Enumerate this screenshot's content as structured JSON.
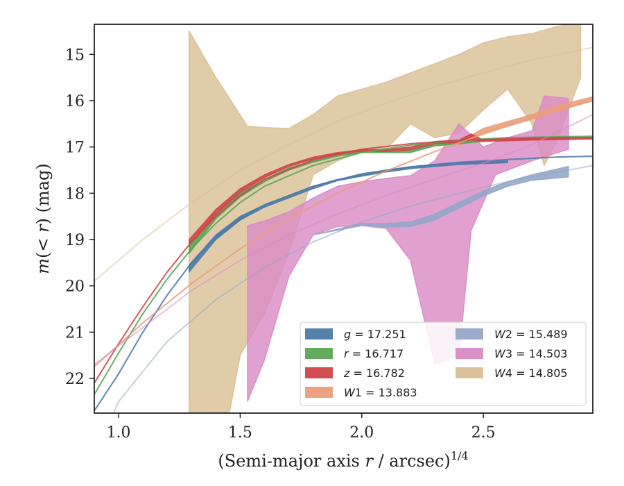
{
  "chart_data": {
    "type": "area",
    "title": "",
    "xlabel_main": "(Semi-major axis ",
    "xlabel_var": "r",
    "xlabel_tail": " / arcsec)",
    "xlabel_sup": "1/4",
    "ylabel_m": "m",
    "ylabel_mid": "(< ",
    "ylabel_r": "r",
    "ylabel_end": ") (mag)",
    "xlim": [
      0.9,
      2.95
    ],
    "ylim": [
      22.75,
      14.35
    ],
    "y_inverted": true,
    "grid": false,
    "legend_position": "lower-right",
    "x_ticks": [
      1.0,
      1.5,
      2.0,
      2.5
    ],
    "x_tick_labels": [
      "1.0",
      "1.5",
      "2.0",
      "2.5"
    ],
    "y_ticks": [
      15,
      16,
      17,
      18,
      19,
      20,
      21,
      22
    ],
    "y_tick_labels": [
      "15",
      "16",
      "17",
      "18",
      "19",
      "20",
      "21",
      "22"
    ],
    "series": [
      {
        "name": "g",
        "legend_var": "g",
        "legend_value": "= 17.251",
        "color": "#4c7aa8",
        "band_upper": [
          [
            1.29,
            19.55
          ],
          [
            1.4,
            18.9
          ],
          [
            1.5,
            18.5
          ],
          [
            1.6,
            18.25
          ],
          [
            1.7,
            18.05
          ],
          [
            1.8,
            17.85
          ],
          [
            1.9,
            17.7
          ],
          [
            2.0,
            17.6
          ],
          [
            2.1,
            17.5
          ],
          [
            2.2,
            17.43
          ],
          [
            2.3,
            17.38
          ],
          [
            2.4,
            17.34
          ],
          [
            2.5,
            17.32
          ],
          [
            2.6,
            17.3
          ]
        ],
        "band_lower": [
          [
            1.29,
            19.7
          ],
          [
            1.4,
            19.0
          ],
          [
            1.5,
            18.58
          ],
          [
            1.6,
            18.3
          ],
          [
            1.7,
            18.1
          ],
          [
            1.8,
            17.9
          ],
          [
            1.9,
            17.73
          ],
          [
            2.0,
            17.63
          ],
          [
            2.1,
            17.54
          ],
          [
            2.2,
            17.47
          ],
          [
            2.3,
            17.42
          ],
          [
            2.4,
            17.38
          ],
          [
            2.5,
            17.36
          ],
          [
            2.6,
            17.34
          ]
        ],
        "fit": [
          [
            0.9,
            22.7
          ],
          [
            1.0,
            21.9
          ],
          [
            1.1,
            21.0
          ],
          [
            1.2,
            20.2
          ],
          [
            1.3,
            19.5
          ],
          [
            1.4,
            18.95
          ],
          [
            1.5,
            18.55
          ],
          [
            1.6,
            18.25
          ],
          [
            1.8,
            17.85
          ],
          [
            2.0,
            17.58
          ],
          [
            2.2,
            17.43
          ],
          [
            2.4,
            17.33
          ],
          [
            2.6,
            17.27
          ],
          [
            2.8,
            17.22
          ],
          [
            2.95,
            17.2
          ]
        ]
      },
      {
        "name": "r",
        "legend_var": "r",
        "legend_value": "= 16.717",
        "color": "#5aa656",
        "band_upper": [
          [
            1.29,
            19.15
          ],
          [
            1.4,
            18.45
          ],
          [
            1.5,
            18.0
          ],
          [
            1.6,
            17.7
          ],
          [
            1.7,
            17.45
          ],
          [
            1.8,
            17.3
          ],
          [
            1.9,
            17.18
          ],
          [
            2.0,
            17.1
          ],
          [
            2.1,
            17.08
          ],
          [
            2.2,
            17.08
          ],
          [
            2.3,
            16.95
          ],
          [
            2.4,
            16.9
          ],
          [
            2.5,
            16.86
          ]
        ],
        "band_lower": [
          [
            1.29,
            19.3
          ],
          [
            1.4,
            18.55
          ],
          [
            1.5,
            18.08
          ],
          [
            1.6,
            17.75
          ],
          [
            1.7,
            17.5
          ],
          [
            1.8,
            17.33
          ],
          [
            1.9,
            17.2
          ],
          [
            2.0,
            17.12
          ],
          [
            2.1,
            17.12
          ],
          [
            2.2,
            17.12
          ],
          [
            2.3,
            16.98
          ],
          [
            2.4,
            16.93
          ],
          [
            2.5,
            16.88
          ]
        ],
        "fit": [
          [
            0.9,
            22.35
          ],
          [
            1.0,
            21.45
          ],
          [
            1.1,
            20.6
          ],
          [
            1.2,
            19.85
          ],
          [
            1.3,
            19.2
          ],
          [
            1.4,
            18.65
          ],
          [
            1.5,
            18.2
          ],
          [
            1.6,
            17.85
          ],
          [
            1.8,
            17.4
          ],
          [
            2.0,
            17.12
          ],
          [
            2.2,
            16.96
          ],
          [
            2.4,
            16.86
          ],
          [
            2.6,
            16.8
          ],
          [
            2.8,
            16.78
          ],
          [
            2.95,
            16.77
          ]
        ]
      },
      {
        "name": "z",
        "legend_var": "z",
        "legend_value": "= 16.782",
        "color": "#d0444a",
        "band_upper": [
          [
            1.29,
            19.0
          ],
          [
            1.4,
            18.35
          ],
          [
            1.5,
            17.9
          ],
          [
            1.6,
            17.6
          ],
          [
            1.7,
            17.38
          ],
          [
            1.8,
            17.22
          ],
          [
            1.9,
            17.12
          ],
          [
            2.0,
            17.06
          ],
          [
            2.1,
            17.05
          ],
          [
            2.2,
            17.0
          ],
          [
            2.3,
            16.88
          ],
          [
            2.4,
            16.85
          ],
          [
            2.45,
            16.72
          ],
          [
            2.5,
            16.85
          ],
          [
            2.7,
            16.82
          ],
          [
            2.95,
            16.8
          ]
        ],
        "band_lower": [
          [
            1.29,
            19.12
          ],
          [
            1.4,
            18.45
          ],
          [
            1.5,
            17.98
          ],
          [
            1.6,
            17.66
          ],
          [
            1.7,
            17.42
          ],
          [
            1.8,
            17.26
          ],
          [
            1.9,
            17.15
          ],
          [
            2.0,
            17.09
          ],
          [
            2.1,
            17.1
          ],
          [
            2.2,
            17.06
          ],
          [
            2.3,
            16.93
          ],
          [
            2.4,
            16.9
          ],
          [
            2.45,
            16.85
          ],
          [
            2.5,
            16.88
          ],
          [
            2.7,
            16.85
          ],
          [
            2.95,
            16.83
          ]
        ],
        "fit": [
          [
            0.9,
            22.1
          ],
          [
            1.0,
            21.25
          ],
          [
            1.1,
            20.45
          ],
          [
            1.2,
            19.7
          ],
          [
            1.3,
            19.05
          ],
          [
            1.4,
            18.5
          ],
          [
            1.5,
            18.05
          ],
          [
            1.6,
            17.7
          ],
          [
            1.8,
            17.28
          ],
          [
            2.0,
            17.05
          ],
          [
            2.2,
            16.93
          ],
          [
            2.4,
            16.86
          ],
          [
            2.6,
            16.82
          ],
          [
            2.8,
            16.8
          ],
          [
            2.95,
            16.8
          ]
        ]
      },
      {
        "name": "W1",
        "legend_var": "W",
        "legend_sub": "1",
        "legend_value": "= 13.883",
        "color": "#ec9d7b",
        "band_upper": [
          [
            2.4,
            16.9
          ],
          [
            2.5,
            16.6
          ],
          [
            2.6,
            16.45
          ],
          [
            2.7,
            16.3
          ],
          [
            2.8,
            16.12
          ],
          [
            2.9,
            15.98
          ],
          [
            2.95,
            15.92
          ]
        ],
        "band_lower": [
          [
            2.4,
            16.98
          ],
          [
            2.5,
            16.7
          ],
          [
            2.6,
            16.55
          ],
          [
            2.7,
            16.4
          ],
          [
            2.8,
            16.22
          ],
          [
            2.9,
            16.06
          ],
          [
            2.95,
            16.0
          ]
        ],
        "fit": [
          [
            0.9,
            21.75
          ],
          [
            1.1,
            20.8
          ],
          [
            1.3,
            19.95
          ],
          [
            1.5,
            19.2
          ],
          [
            1.7,
            18.55
          ],
          [
            1.9,
            18.0
          ],
          [
            2.1,
            17.52
          ],
          [
            2.3,
            17.1
          ],
          [
            2.5,
            16.72
          ],
          [
            2.7,
            16.38
          ],
          [
            2.95,
            16.0
          ]
        ]
      },
      {
        "name": "W2",
        "legend_var": "W",
        "legend_sub": "2",
        "legend_value": "= 15.489",
        "color": "#95a6c9",
        "band_upper": [
          [
            1.8,
            18.9
          ],
          [
            2.0,
            18.65
          ],
          [
            2.1,
            18.65
          ],
          [
            2.2,
            18.62
          ],
          [
            2.3,
            18.45
          ],
          [
            2.4,
            18.2
          ],
          [
            2.5,
            17.95
          ],
          [
            2.6,
            17.75
          ],
          [
            2.7,
            17.6
          ],
          [
            2.85,
            17.42
          ]
        ],
        "band_lower": [
          [
            1.8,
            18.9
          ],
          [
            2.0,
            18.7
          ],
          [
            2.1,
            18.73
          ],
          [
            2.2,
            18.72
          ],
          [
            2.3,
            18.58
          ],
          [
            2.4,
            18.32
          ],
          [
            2.5,
            18.06
          ],
          [
            2.6,
            17.85
          ],
          [
            2.7,
            17.72
          ],
          [
            2.85,
            17.65
          ]
        ],
        "fit": [
          [
            0.9,
            23.7
          ],
          [
            1.0,
            22.5
          ],
          [
            1.2,
            21.2
          ],
          [
            1.4,
            20.3
          ],
          [
            1.6,
            19.6
          ],
          [
            1.8,
            19.05
          ],
          [
            2.0,
            18.62
          ],
          [
            2.2,
            18.28
          ],
          [
            2.4,
            18.0
          ],
          [
            2.6,
            17.75
          ],
          [
            2.8,
            17.55
          ],
          [
            2.95,
            17.4
          ]
        ]
      },
      {
        "name": "W3",
        "legend_var": "W",
        "legend_sub": "3",
        "legend_value": "= 14.503",
        "color": "#d98ac4",
        "band_upper": [
          [
            1.53,
            18.7
          ],
          [
            1.6,
            18.6
          ],
          [
            1.7,
            18.4
          ],
          [
            1.8,
            18.1
          ],
          [
            1.9,
            17.85
          ],
          [
            2.0,
            17.75
          ],
          [
            2.1,
            17.68
          ],
          [
            2.2,
            17.62
          ],
          [
            2.3,
            17.3
          ],
          [
            2.4,
            16.5
          ],
          [
            2.5,
            17.0
          ],
          [
            2.6,
            16.8
          ],
          [
            2.7,
            16.65
          ],
          [
            2.75,
            15.9
          ],
          [
            2.85,
            15.95
          ]
        ],
        "band_lower": [
          [
            1.53,
            22.5
          ],
          [
            1.6,
            21.6
          ],
          [
            1.7,
            19.8
          ],
          [
            1.8,
            18.9
          ],
          [
            1.9,
            18.72
          ],
          [
            2.0,
            18.7
          ],
          [
            2.1,
            18.76
          ],
          [
            2.2,
            19.45
          ],
          [
            2.3,
            21.7
          ],
          [
            2.4,
            21.5
          ],
          [
            2.45,
            18.8
          ],
          [
            2.55,
            17.6
          ],
          [
            2.6,
            17.5
          ],
          [
            2.7,
            17.3
          ],
          [
            2.85,
            17.05
          ]
        ],
        "fit": [
          [
            0.9,
            21.7
          ],
          [
            1.1,
            20.9
          ],
          [
            1.3,
            20.1
          ],
          [
            1.5,
            19.45
          ],
          [
            1.7,
            18.9
          ],
          [
            1.9,
            18.45
          ],
          [
            2.1,
            18.05
          ],
          [
            2.3,
            17.7
          ],
          [
            2.5,
            17.35
          ],
          [
            2.7,
            16.95
          ],
          [
            2.95,
            16.3
          ]
        ]
      },
      {
        "name": "W4",
        "legend_var": "W",
        "legend_sub": "4",
        "legend_value": "= 14.805",
        "color": "#d9bf95",
        "band_upper": [
          [
            1.29,
            14.5
          ],
          [
            1.4,
            15.5
          ],
          [
            1.53,
            16.55
          ],
          [
            1.6,
            16.58
          ],
          [
            1.7,
            16.6
          ],
          [
            1.8,
            16.3
          ],
          [
            1.9,
            15.9
          ],
          [
            2.0,
            15.75
          ],
          [
            2.1,
            15.6
          ],
          [
            2.2,
            15.4
          ],
          [
            2.3,
            15.2
          ],
          [
            2.4,
            15.0
          ],
          [
            2.5,
            14.75
          ],
          [
            2.6,
            14.62
          ],
          [
            2.7,
            14.55
          ],
          [
            2.8,
            14.4
          ],
          [
            2.9,
            14.3
          ]
        ],
        "band_lower": [
          [
            1.29,
            22.9
          ],
          [
            1.45,
            22.9
          ],
          [
            1.5,
            21.5
          ],
          [
            1.6,
            20.6
          ],
          [
            1.7,
            19.3
          ],
          [
            1.8,
            17.6
          ],
          [
            1.9,
            17.3
          ],
          [
            2.0,
            17.1
          ],
          [
            2.1,
            17.05
          ],
          [
            2.2,
            16.5
          ],
          [
            2.3,
            16.8
          ],
          [
            2.4,
            16.7
          ],
          [
            2.5,
            16.2
          ],
          [
            2.6,
            15.75
          ],
          [
            2.7,
            16.5
          ],
          [
            2.75,
            17.4
          ],
          [
            2.8,
            16.9
          ],
          [
            2.9,
            15.5
          ]
        ],
        "fit": [
          [
            0.9,
            19.9
          ],
          [
            1.1,
            19.0
          ],
          [
            1.3,
            18.2
          ],
          [
            1.5,
            17.5
          ],
          [
            1.7,
            16.95
          ],
          [
            1.9,
            16.45
          ],
          [
            2.1,
            16.05
          ],
          [
            2.3,
            15.7
          ],
          [
            2.5,
            15.4
          ],
          [
            2.7,
            15.12
          ],
          [
            2.95,
            14.85
          ]
        ]
      }
    ]
  }
}
